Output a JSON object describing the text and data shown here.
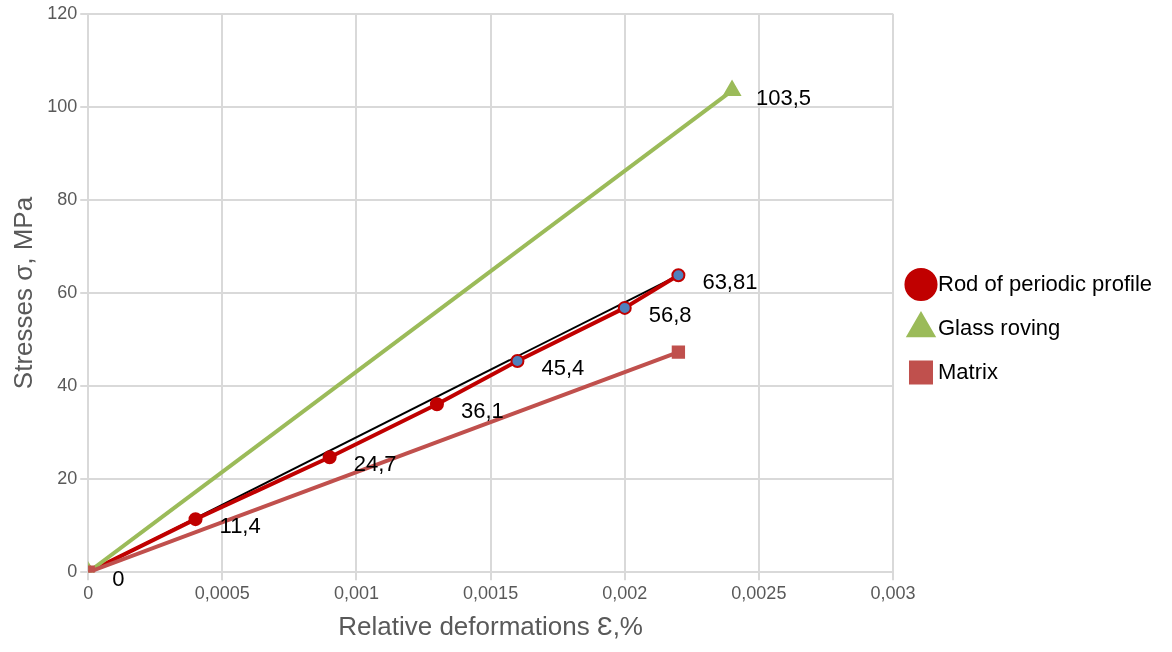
{
  "chart_data": {
    "type": "line",
    "xlabel": "Relative deformations Ɛ,%",
    "ylabel": "Stresses σ, MPa",
    "xlim": [
      0,
      0.003
    ],
    "xticks": [
      0,
      {
        "value": 0.0005,
        "label": "0,0005"
      },
      {
        "value": 0.001,
        "label": "0,001"
      },
      {
        "value": 0.0015,
        "label": "0,0015"
      },
      {
        "value": 0.002,
        "label": "0,002"
      },
      {
        "value": 0.0025,
        "label": "0,0025"
      },
      {
        "value": 0.003,
        "label": "0,003"
      }
    ],
    "ylim": [
      0,
      120
    ],
    "yticks": [
      0,
      20,
      40,
      60,
      80,
      100,
      120
    ],
    "grid": true,
    "legend": "right",
    "series": [
      {
        "name": "Rod of periodic profile",
        "color": "#c00000",
        "marker": "circle",
        "colors": [
          "#c00000",
          "#c00000",
          "#c00000",
          "#c00000",
          "#4f81bd",
          "#4f81bd",
          "#4f81bd"
        ],
        "x": [
          0,
          0.0004,
          0.0009,
          0.0013,
          0.0016,
          0.002,
          0.0022
        ],
        "values": [
          0,
          11.4,
          24.7,
          36.1,
          45.4,
          56.8,
          63.81
        ],
        "value_labels": [
          "0",
          "11,4",
          "24,7",
          "36,1",
          "45,4",
          "56,8",
          "63,81"
        ]
      },
      {
        "name": "Glass roving",
        "color": "#9bbb59",
        "marker": "triangle",
        "x": [
          0,
          0.0024
        ],
        "values": [
          0,
          103.5
        ],
        "value_labels": [
          null,
          "103,5"
        ]
      },
      {
        "name": "Matrix",
        "color": "#c0504d",
        "marker": "square",
        "x": [
          0,
          0.0022
        ],
        "values": [
          0,
          47.3
        ]
      },
      {
        "type": "line",
        "color": "#000000",
        "marker": "none",
        "x": [
          0,
          0.0022
        ],
        "values": [
          0,
          63.81
        ]
      }
    ]
  }
}
